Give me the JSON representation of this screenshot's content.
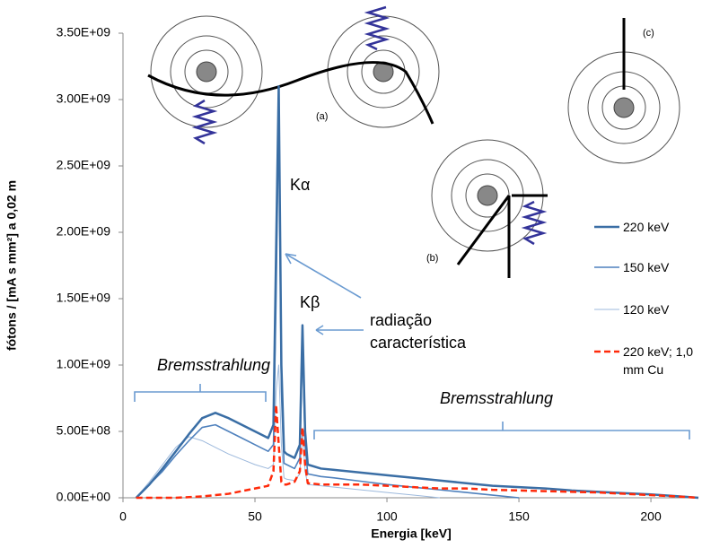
{
  "chart_data": {
    "type": "line",
    "xlabel": "Energia  [keV]",
    "ylabel": "fótons / [mA s mm²] a 0,02 m",
    "xlim": [
      0,
      218
    ],
    "ylim": [
      0,
      3500000000
    ],
    "xticks": [
      0,
      50,
      100,
      150,
      200
    ],
    "yticks": [
      {
        "value": 0,
        "label": "0.00E+00"
      },
      {
        "value": 500000000,
        "label": "5.00E+08"
      },
      {
        "value": 1000000000,
        "label": "1.00E+09"
      },
      {
        "value": 1500000000,
        "label": "1.50E+09"
      },
      {
        "value": 2000000000,
        "label": "2.00E+09"
      },
      {
        "value": 2500000000,
        "label": "2.50E+09"
      },
      {
        "value": 3000000000,
        "label": "3.00E+09"
      },
      {
        "value": 3500000000,
        "label": "3.50E+09"
      }
    ],
    "x": [
      5,
      10,
      15,
      20,
      25,
      30,
      35,
      40,
      45,
      50,
      55,
      57,
      58,
      59,
      60,
      61,
      62,
      65,
      67,
      68,
      69,
      70,
      75,
      80,
      90,
      100,
      110,
      120,
      130,
      140,
      150,
      160,
      170,
      180,
      190,
      200,
      210,
      218
    ],
    "series": [
      {
        "name": "220 keV",
        "color": "#3a6ea5",
        "width": 2.5,
        "dashed": false,
        "values": [
          0,
          100000000,
          220000000,
          350000000,
          480000000,
          600000000,
          640000000,
          600000000,
          550000000,
          500000000,
          450000000,
          550000000,
          1850000000,
          3100000000,
          1000000000,
          350000000,
          330000000,
          300000000,
          400000000,
          1300000000,
          500000000,
          250000000,
          220000000,
          210000000,
          190000000,
          170000000,
          150000000,
          130000000,
          110000000,
          90000000,
          80000000,
          70000000,
          55000000,
          45000000,
          35000000,
          25000000,
          12000000,
          0
        ]
      },
      {
        "name": "150 keV",
        "color": "#4f81bd",
        "width": 1.6,
        "dashed": false,
        "values": [
          0,
          100000000,
          200000000,
          320000000,
          430000000,
          530000000,
          550000000,
          500000000,
          450000000,
          400000000,
          350000000,
          400000000,
          1500000000,
          2900000000,
          800000000,
          260000000,
          250000000,
          220000000,
          300000000,
          1200000000,
          400000000,
          180000000,
          160000000,
          150000000,
          125000000,
          100000000,
          80000000,
          60000000,
          40000000,
          20000000,
          0,
          null,
          null,
          null,
          null,
          null,
          null,
          null
        ]
      },
      {
        "name": "120 keV",
        "color": "#9db9dc",
        "width": 1,
        "dashed": false,
        "values": [
          0,
          120000000,
          250000000,
          380000000,
          460000000,
          430000000,
          380000000,
          330000000,
          290000000,
          250000000,
          220000000,
          250000000,
          800000000,
          1000000000,
          400000000,
          150000000,
          140000000,
          130000000,
          180000000,
          500000000,
          200000000,
          100000000,
          90000000,
          80000000,
          60000000,
          40000000,
          20000000,
          0,
          null,
          null,
          null,
          null,
          null,
          null,
          null,
          null,
          null,
          null
        ]
      },
      {
        "name": "220 keV; 1,0 mm Cu",
        "color": "#ff2a0a",
        "width": 2.5,
        "dashed": true,
        "values": [
          0,
          0,
          0,
          0,
          5000000,
          10000000,
          20000000,
          30000000,
          50000000,
          70000000,
          90000000,
          200000000,
          700000000,
          400000000,
          120000000,
          100000000,
          100000000,
          120000000,
          200000000,
          530000000,
          250000000,
          110000000,
          100000000,
          100000000,
          100000000,
          90000000,
          80000000,
          70000000,
          70000000,
          60000000,
          55000000,
          50000000,
          45000000,
          40000000,
          30000000,
          20000000,
          10000000,
          0
        ]
      }
    ],
    "annotations": [
      "Kα",
      "Kβ",
      "radiação",
      "característica",
      "Bremsstrahlung",
      "Bremsstrahlung",
      "(a)",
      "(b)",
      "(c)"
    ]
  }
}
